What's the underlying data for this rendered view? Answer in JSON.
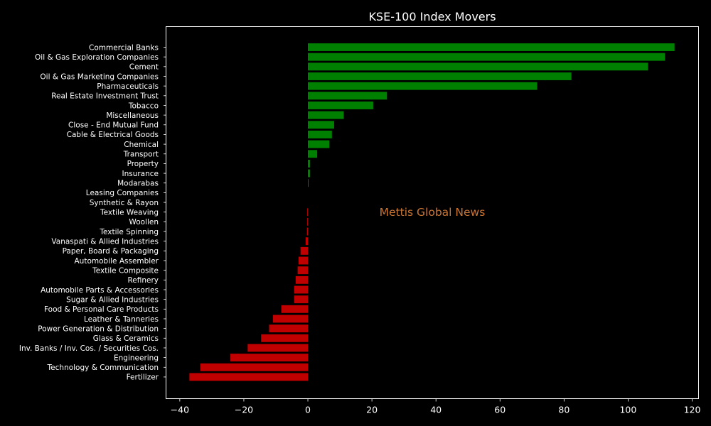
{
  "chart_data": {
    "type": "bar",
    "orientation": "horizontal",
    "title": "KSE-100 Index Movers",
    "xlabel": "",
    "ylabel": "",
    "xlim": [
      -44.3,
      122
    ],
    "xticks": [
      -40,
      -20,
      0,
      20,
      40,
      60,
      80,
      100,
      120
    ],
    "xtick_labels": [
      "−40",
      "−20",
      "0",
      "20",
      "40",
      "60",
      "80",
      "100",
      "120"
    ],
    "grid": false,
    "legend": "none",
    "watermark": "Mettis Global News",
    "categories": [
      "Commercial Banks",
      "Oil & Gas Exploration Companies",
      "Cement",
      "Oil & Gas Marketing Companies",
      "Pharmaceuticals",
      "Real Estate Investment Trust",
      "Tobacco",
      "Miscellaneous",
      "Close - End Mutual Fund",
      "Cable & Electrical Goods",
      "Chemical",
      "Transport",
      "Property",
      "Insurance",
      "Modarabas",
      "Leasing Companies",
      "Synthetic & Rayon",
      "Textile Weaving",
      "Woollen",
      "Textile Spinning",
      "Vanaspati & Allied Industries",
      "Paper, Board & Packaging",
      "Automobile Assembler",
      "Textile Composite",
      "Refinery",
      "Automobile Parts & Accessories",
      "Sugar & Allied Industries",
      "Food & Personal Care Products",
      "Leather & Tanneries",
      "Power Generation & Distribution",
      "Glass & Ceramics",
      "Inv. Banks / Inv. Cos. / Securities Cos.",
      "Engineering",
      "Technology & Communication",
      "Fertilizer"
    ],
    "values": [
      114.5,
      111.5,
      106.2,
      82.3,
      71.6,
      24.7,
      20.4,
      11.2,
      8.2,
      7.5,
      6.7,
      2.9,
      0.7,
      0.7,
      0.2,
      0,
      0,
      -0.2,
      -0.2,
      -0.3,
      -0.7,
      -2.3,
      -2.9,
      -3.2,
      -3.8,
      -4.3,
      -4.3,
      -8.3,
      -10.9,
      -12.1,
      -14.6,
      -18.8,
      -24.2,
      -33.6,
      -37.0
    ],
    "colors": {
      "positive": "#008000",
      "negative": "#c00000",
      "background": "#000000",
      "axes": "#ffffff",
      "watermark": "#c87533"
    }
  }
}
